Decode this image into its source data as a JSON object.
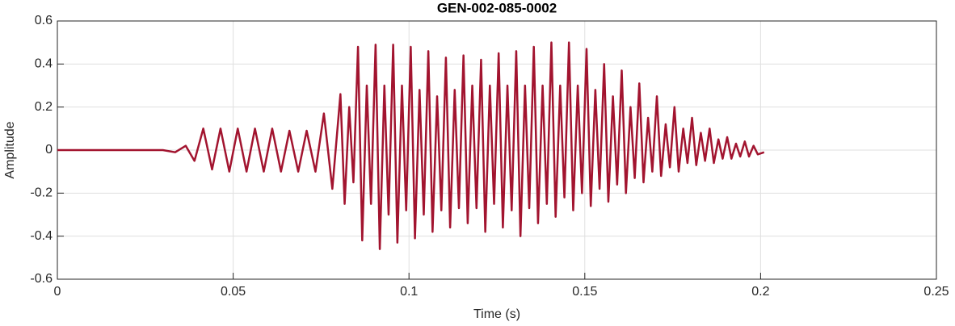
{
  "chart_data": {
    "type": "line",
    "title": "GEN-002-085-0002",
    "x_label": "Time (s)",
    "y_label": "Amplitude",
    "xlim": [
      0,
      0.25
    ],
    "xticks": [
      0,
      0.05,
      0.1,
      0.15,
      0.2,
      0.25
    ],
    "ylim": [
      -0.6,
      0.6
    ],
    "yticks": [
      -0.6,
      -0.4,
      -0.2,
      0,
      0.2,
      0.4,
      0.6
    ],
    "grid": true,
    "series": [
      {
        "color": "#a2142f",
        "x": [
          0,
          0.03,
          0.0335,
          0.0365,
          0.039,
          0.0415,
          0.044,
          0.0464,
          0.0489,
          0.0513,
          0.0538,
          0.0562,
          0.0587,
          0.0611,
          0.0636,
          0.066,
          0.0685,
          0.0709,
          0.0734,
          0.0758,
          0.0782,
          0.0805,
          0.0817,
          0.083,
          0.0842,
          0.0855,
          0.0867,
          0.088,
          0.0892,
          0.0905,
          0.0917,
          0.093,
          0.0942,
          0.0955,
          0.0967,
          0.098,
          0.0992,
          0.1005,
          0.1017,
          0.103,
          0.1042,
          0.1055,
          0.1067,
          0.108,
          0.1092,
          0.1105,
          0.1117,
          0.113,
          0.1142,
          0.1155,
          0.1167,
          0.118,
          0.1192,
          0.1205,
          0.1217,
          0.123,
          0.1242,
          0.1255,
          0.1267,
          0.128,
          0.1292,
          0.1305,
          0.1317,
          0.133,
          0.1342,
          0.1355,
          0.1367,
          0.138,
          0.1392,
          0.1405,
          0.1417,
          0.143,
          0.1442,
          0.1455,
          0.1467,
          0.148,
          0.1492,
          0.1505,
          0.1517,
          0.153,
          0.1542,
          0.1555,
          0.1567,
          0.158,
          0.1592,
          0.1605,
          0.1617,
          0.163,
          0.1642,
          0.1655,
          0.1667,
          0.168,
          0.1692,
          0.1705,
          0.1717,
          0.173,
          0.1742,
          0.1755,
          0.1767,
          0.178,
          0.1792,
          0.1805,
          0.1817,
          0.183,
          0.1842,
          0.1855,
          0.1867,
          0.188,
          0.1892,
          0.1905,
          0.1917,
          0.193,
          0.1942,
          0.1955,
          0.1967,
          0.198,
          0.1992,
          0.201
        ],
        "values": [
          0,
          0,
          -0.01,
          0.02,
          -0.05,
          0.1,
          -0.09,
          0.1,
          -0.1,
          0.1,
          -0.1,
          0.1,
          -0.1,
          0.1,
          -0.1,
          0.09,
          -0.1,
          0.09,
          -0.1,
          0.17,
          -0.18,
          0.26,
          -0.25,
          0.2,
          -0.15,
          0.48,
          -0.42,
          0.3,
          -0.25,
          0.49,
          -0.46,
          0.3,
          -0.3,
          0.49,
          -0.43,
          0.3,
          -0.28,
          0.48,
          -0.41,
          0.28,
          -0.3,
          0.46,
          -0.38,
          0.25,
          -0.28,
          0.43,
          -0.36,
          0.28,
          -0.27,
          0.44,
          -0.34,
          0.3,
          -0.27,
          0.42,
          -0.38,
          0.3,
          -0.25,
          0.45,
          -0.36,
          0.3,
          -0.28,
          0.46,
          -0.4,
          0.3,
          -0.27,
          0.48,
          -0.34,
          0.3,
          -0.25,
          0.5,
          -0.31,
          0.3,
          -0.22,
          0.5,
          -0.28,
          0.3,
          -0.2,
          0.47,
          -0.26,
          0.28,
          -0.18,
          0.4,
          -0.24,
          0.25,
          -0.16,
          0.37,
          -0.2,
          0.2,
          -0.13,
          0.31,
          -0.15,
          0.15,
          -0.1,
          0.25,
          -0.12,
          0.12,
          -0.08,
          0.2,
          -0.1,
          0.1,
          -0.06,
          0.15,
          -0.07,
          0.08,
          -0.05,
          0.1,
          -0.06,
          0.05,
          -0.04,
          0.06,
          -0.04,
          0.03,
          -0.03,
          0.04,
          -0.03,
          0.02,
          -0.02,
          -0.01
        ]
      }
    ]
  }
}
